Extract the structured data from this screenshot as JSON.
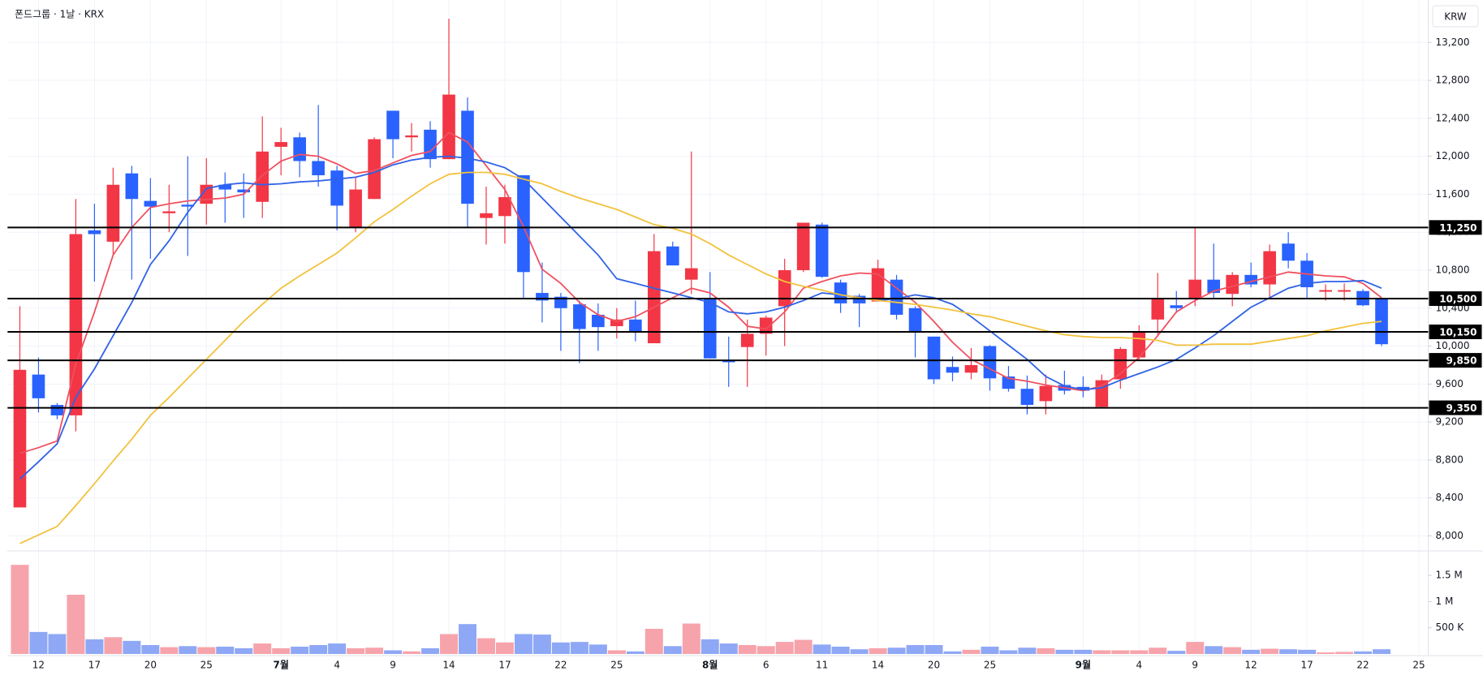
{
  "chart_data": {
    "type": "candlestick",
    "title": "폰드그룹 · 1날 · KRX",
    "currency": "KRW",
    "up_color": "#f23645",
    "down_color": "#2962ff",
    "volume_up_color": "#f7a3ab",
    "volume_down_color": "#8fa8f5",
    "grid": true,
    "open": [
      8300,
      9700,
      9380,
      9270,
      11220,
      11100,
      11820,
      11530,
      11400,
      11490,
      11500,
      11700,
      11650,
      11520,
      12100,
      12200,
      11950,
      11850,
      11250,
      11550,
      12480,
      12200,
      12280,
      11970,
      12480,
      11350,
      11370,
      11800,
      10560,
      10520,
      10440,
      10330,
      10210,
      10280,
      10030,
      11050,
      10700,
      10500,
      9850,
      9990,
      10130,
      10420,
      10800,
      11280,
      10670,
      10530,
      10470,
      10700,
      10400,
      10100,
      9780,
      9720,
      10000,
      9680,
      9550,
      9420,
      9590,
      9570,
      9360,
      9650,
      9880,
      10280,
      10430,
      10500,
      10700,
      10550,
      10750,
      10650,
      11080,
      10900,
      10580,
      10580,
      10580,
      10500
    ],
    "high": [
      10420,
      9880,
      9400,
      11550,
      11500,
      11880,
      11900,
      11770,
      11700,
      12000,
      11980,
      11830,
      11820,
      12420,
      12300,
      12250,
      12540,
      11900,
      11780,
      12200,
      12480,
      12350,
      12370,
      13450,
      12620,
      11680,
      11700,
      11800,
      10880,
      10560,
      10480,
      10450,
      10400,
      10480,
      11180,
      11100,
      12050,
      10780,
      10100,
      10280,
      10320,
      10920,
      11300,
      11300,
      10700,
      10550,
      10910,
      10750,
      10420,
      10100,
      9890,
      9980,
      10010,
      9790,
      9690,
      9700,
      9740,
      9680,
      9700,
      9990,
      10220,
      10770,
      10580,
      11250,
      11080,
      10780,
      10880,
      11070,
      11200,
      10980,
      10650,
      10660,
      10600,
      10500
    ],
    "low": [
      8300,
      9300,
      9230,
      9100,
      10680,
      10960,
      10700,
      10920,
      11200,
      10950,
      11280,
      11300,
      11350,
      11350,
      11800,
      11780,
      11680,
      11220,
      11200,
      11550,
      11980,
      12050,
      11880,
      11970,
      11250,
      11070,
      11080,
      10500,
      10250,
      9950,
      9820,
      9950,
      10080,
      10050,
      10030,
      10850,
      10550,
      9870,
      9570,
      9570,
      9900,
      10000,
      10780,
      10720,
      10350,
      10200,
      10470,
      10280,
      9880,
      9600,
      9630,
      9650,
      9530,
      9520,
      9280,
      9280,
      9490,
      9460,
      9350,
      9550,
      9850,
      10100,
      10350,
      10420,
      10500,
      10420,
      10620,
      10500,
      10820,
      10500,
      10480,
      10480,
      10420,
      10000
    ],
    "close": [
      9750,
      9450,
      9270,
      11180,
      11180,
      11700,
      11550,
      11470,
      11420,
      11470,
      11700,
      11650,
      11620,
      12050,
      12150,
      11950,
      11800,
      11480,
      11650,
      12180,
      12180,
      12220,
      11970,
      12650,
      11500,
      11400,
      11570,
      10780,
      10480,
      10400,
      10180,
      10200,
      10280,
      10150,
      11000,
      10850,
      10820,
      9870,
      9830,
      10130,
      10300,
      10800,
      11300,
      10730,
      10450,
      10450,
      10820,
      10330,
      10150,
      9650,
      9720,
      9800,
      9660,
      9550,
      9380,
      9580,
      9530,
      9530,
      9640,
      9970,
      10150,
      10500,
      10400,
      10700,
      10560,
      10750,
      10650,
      11000,
      10900,
      10620,
      10590,
      10590,
      10430,
      10020
    ],
    "volume": [
      1700000,
      420000,
      380000,
      1130000,
      280000,
      320000,
      250000,
      170000,
      130000,
      150000,
      130000,
      140000,
      110000,
      200000,
      110000,
      140000,
      170000,
      200000,
      110000,
      120000,
      70000,
      50000,
      110000,
      380000,
      570000,
      300000,
      220000,
      380000,
      370000,
      220000,
      230000,
      180000,
      70000,
      50000,
      480000,
      150000,
      580000,
      280000,
      200000,
      170000,
      150000,
      230000,
      270000,
      180000,
      140000,
      90000,
      110000,
      120000,
      170000,
      170000,
      50000,
      80000,
      140000,
      70000,
      120000,
      110000,
      80000,
      80000,
      70000,
      70000,
      70000,
      120000,
      60000,
      230000,
      150000,
      130000,
      80000,
      100000,
      90000,
      80000,
      30000,
      40000,
      50000,
      90000
    ],
    "ma_series": [
      {
        "color": "#f0505f",
        "values": [
          8870,
          8930,
          9000,
          9810,
          10360,
          10960,
          11250,
          11460,
          11500,
          11530,
          11545,
          11560,
          11600,
          11800,
          11950,
          12020,
          12000,
          11920,
          11820,
          11850,
          11930,
          12010,
          12050,
          12250,
          12150,
          11900,
          11650,
          11260,
          10810,
          10660,
          10460,
          10330,
          10260,
          10310,
          10410,
          10510,
          10610,
          10560,
          10410,
          10210,
          10180,
          10360,
          10610,
          10680,
          10740,
          10770,
          10760,
          10610,
          10460,
          10260,
          10040,
          9860,
          9760,
          9660,
          9630,
          9590,
          9560,
          9530,
          9580,
          9710,
          9880,
          10110,
          10360,
          10480,
          10580,
          10630,
          10680,
          10730,
          10780,
          10760,
          10740,
          10730,
          10660,
          10510
        ]
      },
      {
        "color": "#2f62e6",
        "values": [
          8600,
          8780,
          8970,
          9460,
          9760,
          10110,
          10460,
          10860,
          11110,
          11410,
          11660,
          11700,
          11720,
          11700,
          11710,
          11730,
          11740,
          11760,
          11780,
          11830,
          11910,
          11960,
          11990,
          12000,
          11980,
          11940,
          11880,
          11760,
          11560,
          11360,
          11160,
          10960,
          10710,
          10660,
          10610,
          10560,
          10510,
          10460,
          10360,
          10340,
          10360,
          10410,
          10480,
          10560,
          10540,
          10510,
          10480,
          10500,
          10540,
          10510,
          10440,
          10310,
          10160,
          10010,
          9860,
          9680,
          9580,
          9540,
          9560,
          9640,
          9710,
          9780,
          9860,
          9980,
          10110,
          10260,
          10410,
          10510,
          10610,
          10660,
          10680,
          10680,
          10690,
          10610
        ]
      },
      {
        "color": "#f2c23c",
        "values": [
          7920,
          8010,
          8100,
          8320,
          8550,
          8790,
          9020,
          9270,
          9460,
          9660,
          9860,
          10060,
          10260,
          10440,
          10610,
          10740,
          10860,
          10980,
          11140,
          11310,
          11440,
          11580,
          11710,
          11810,
          11830,
          11830,
          11810,
          11760,
          11710,
          11630,
          11560,
          11500,
          11440,
          11360,
          11280,
          11240,
          11180,
          11080,
          10960,
          10860,
          10760,
          10680,
          10630,
          10590,
          10540,
          10510,
          10480,
          10460,
          10440,
          10410,
          10380,
          10340,
          10310,
          10260,
          10210,
          10160,
          10120,
          10100,
          10090,
          10090,
          10080,
          10060,
          10010,
          10010,
          10020,
          10020,
          10020,
          10050,
          10080,
          10110,
          10160,
          10200,
          10240,
          10260
        ]
      }
    ],
    "price_lines": [
      {
        "value": 11250,
        "label": "11,250"
      },
      {
        "value": 10500,
        "label": "10,500"
      },
      {
        "value": 10150,
        "label": "10,150"
      },
      {
        "value": 9850,
        "label": "9,850"
      },
      {
        "value": 9350,
        "label": "9,350"
      }
    ],
    "ylim": [
      7850,
      13570
    ],
    "yticks": [
      {
        "value": 8000,
        "label": "8,000"
      },
      {
        "value": 8400,
        "label": "8,400"
      },
      {
        "value": 8800,
        "label": "8,800"
      },
      {
        "value": 9200,
        "label": "9,200"
      },
      {
        "value": 9600,
        "label": "9,600"
      },
      {
        "value": 10000,
        "label": "10,000"
      },
      {
        "value": 10400,
        "label": "10,400"
      },
      {
        "value": 10800,
        "label": "10,800"
      },
      {
        "value": 11200,
        "label": "11,200"
      },
      {
        "value": 11600,
        "label": "11,600"
      },
      {
        "value": 12000,
        "label": "12,000"
      },
      {
        "value": 12400,
        "label": "12,400"
      },
      {
        "value": 12800,
        "label": "12,800"
      },
      {
        "value": 13200,
        "label": "13,200"
      }
    ],
    "volume_ylim": [
      0,
      1950000
    ],
    "volume_yticks": [
      {
        "value": 500000,
        "label": "500 K"
      },
      {
        "value": 1000000,
        "label": "1 M"
      },
      {
        "value": 1500000,
        "label": "1.5 M"
      }
    ],
    "xlim": [
      -0.66,
      75.5
    ],
    "xticks": [
      {
        "value": 1,
        "label": "12"
      },
      {
        "value": 4,
        "label": "17"
      },
      {
        "value": 7,
        "label": "20"
      },
      {
        "value": 10,
        "label": "25"
      },
      {
        "value": 14,
        "label": "7월"
      },
      {
        "value": 17,
        "label": "4"
      },
      {
        "value": 20,
        "label": "9"
      },
      {
        "value": 23,
        "label": "14"
      },
      {
        "value": 26,
        "label": "17"
      },
      {
        "value": 29,
        "label": "22"
      },
      {
        "value": 32,
        "label": "25"
      },
      {
        "value": 37,
        "label": "8월"
      },
      {
        "value": 40,
        "label": "6"
      },
      {
        "value": 43,
        "label": "11"
      },
      {
        "value": 46,
        "label": "14"
      },
      {
        "value": 49,
        "label": "20"
      },
      {
        "value": 52,
        "label": "25"
      },
      {
        "value": 57,
        "label": "9월"
      },
      {
        "value": 60,
        "label": "4"
      },
      {
        "value": 63,
        "label": "9"
      },
      {
        "value": 66,
        "label": "12"
      },
      {
        "value": 69,
        "label": "17"
      },
      {
        "value": 72,
        "label": "22"
      },
      {
        "value": 75,
        "label": "25"
      }
    ]
  }
}
